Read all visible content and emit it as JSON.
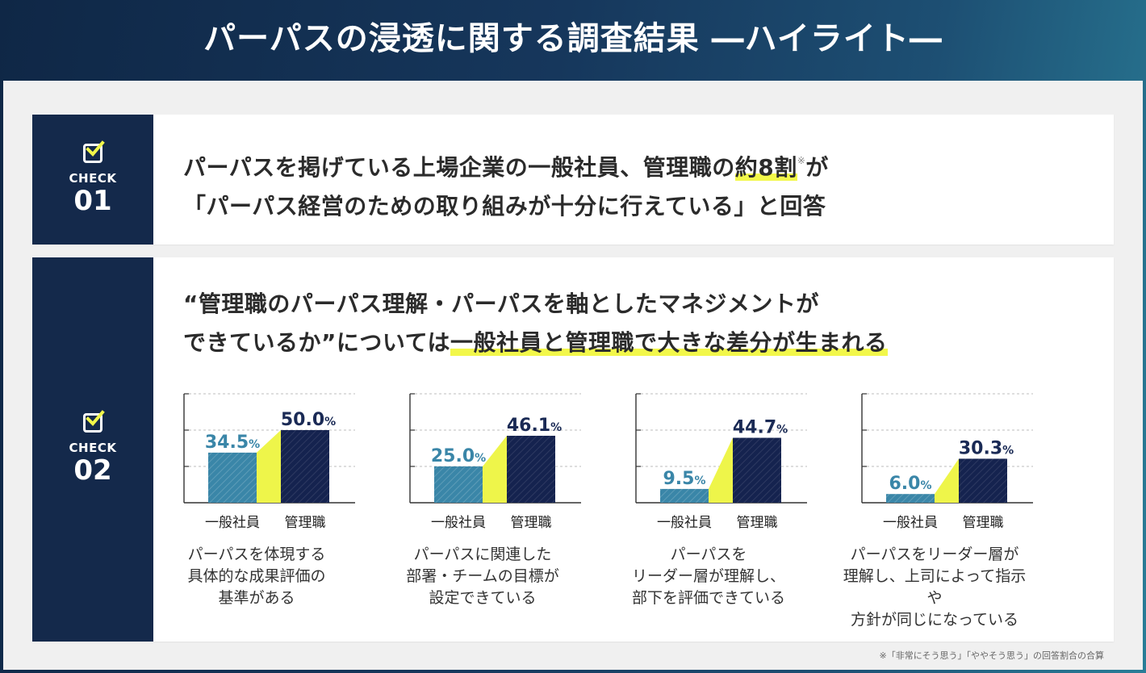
{
  "title": "パーパスの浸透に関する調査結果 ―ハイライト―",
  "check1": {
    "label": "CHECK",
    "num": "01",
    "line1_pre": "パーパスを掲げている上場企業の一般社員、管理職の",
    "line1_hl": "約8割",
    "line1_sup": "※",
    "line1_post": "が",
    "line2": "「パーパス経営のための取り組みが十分に行えている」と回答"
  },
  "check2": {
    "label": "CHECK",
    "num": "02",
    "line1": "“管理職のパーパス理解・パーパスを軸としたマネジメントが",
    "line2_pre": "できているか”については",
    "line2_hl": "一般社員と管理職で大きな差分が生まれる"
  },
  "colors": {
    "general": "#3a86a8",
    "manager": "#15234f",
    "connector": "#eef54a",
    "general_label": "#3a86a8",
    "manager_label": "#1a2a55"
  },
  "chart_data": [
    {
      "type": "bar",
      "categories": [
        "一般社員",
        "管理職"
      ],
      "values": [
        34.5,
        50.0
      ],
      "labels": [
        "34.5",
        "50.0"
      ],
      "unit": "%",
      "ylim": [
        0,
        75
      ],
      "gridlines": [
        25,
        50,
        75
      ],
      "caption": [
        "パーパスを体現する",
        "具体的な成果評価の",
        "基準がある"
      ]
    },
    {
      "type": "bar",
      "categories": [
        "一般社員",
        "管理職"
      ],
      "values": [
        25.0,
        46.1
      ],
      "labels": [
        "25.0",
        "46.1"
      ],
      "unit": "%",
      "ylim": [
        0,
        75
      ],
      "gridlines": [
        25,
        50,
        75
      ],
      "caption": [
        "パーパスに関連した",
        "部署・チームの目標が",
        "設定できている"
      ]
    },
    {
      "type": "bar",
      "categories": [
        "一般社員",
        "管理職"
      ],
      "values": [
        9.5,
        44.7
      ],
      "labels": [
        "9.5",
        "44.7"
      ],
      "unit": "%",
      "ylim": [
        0,
        75
      ],
      "gridlines": [
        25,
        50,
        75
      ],
      "caption": [
        "パーパスを",
        "リーダー層が理解し、",
        "部下を評価できている"
      ]
    },
    {
      "type": "bar",
      "categories": [
        "一般社員",
        "管理職"
      ],
      "values": [
        6.0,
        30.3
      ],
      "labels": [
        "6.0",
        "30.3"
      ],
      "unit": "%",
      "ylim": [
        0,
        75
      ],
      "gridlines": [
        25,
        50,
        75
      ],
      "caption": [
        "パーパスをリーダー層が",
        "理解し、上司によって指示や",
        "方針が同じになっている"
      ]
    }
  ],
  "footnote": "※「非常にそう思う」「ややそう思う」の回答割合の合算"
}
